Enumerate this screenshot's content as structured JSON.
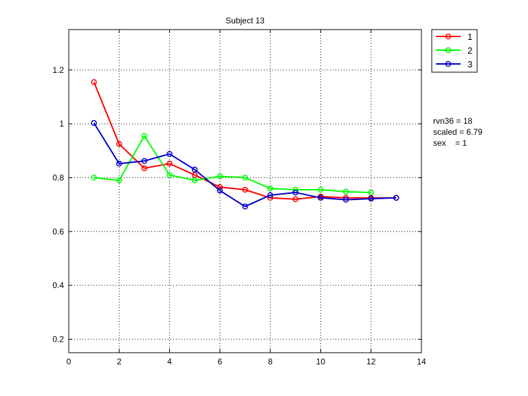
{
  "chart_data": {
    "type": "line",
    "title": "Subject 13",
    "xlabel": "",
    "ylabel": "",
    "xlim": [
      0,
      14
    ],
    "ylim": [
      0.15,
      1.35
    ],
    "xticks": [
      0,
      2,
      4,
      6,
      8,
      10,
      12,
      14
    ],
    "yticks": [
      0.2,
      0.4,
      0.6,
      0.8,
      1,
      1.2
    ],
    "xtick_labels": [
      "0",
      "2",
      "4",
      "6",
      "8",
      "10",
      "12",
      "14"
    ],
    "ytick_labels": [
      "0.2",
      "0.4",
      "0.6",
      "0.8",
      "1",
      "1.2"
    ],
    "grid": true,
    "legend_position": "outside-top-right",
    "series": [
      {
        "name": "1",
        "color": "#ff0000",
        "marker": "circle",
        "x": [
          1,
          2,
          3,
          4,
          5,
          6,
          7,
          8,
          9,
          10,
          11,
          12,
          13
        ],
        "y": [
          1.155,
          0.925,
          0.835,
          0.852,
          0.81,
          0.765,
          0.755,
          0.725,
          0.72,
          0.73,
          0.725,
          0.725,
          0.725
        ]
      },
      {
        "name": "2",
        "color": "#00ff00",
        "marker": "circle",
        "x": [
          1,
          2,
          3,
          4,
          5,
          6,
          7,
          8,
          9,
          10,
          11,
          12
        ],
        "y": [
          0.8,
          0.79,
          0.955,
          0.81,
          0.79,
          0.805,
          0.8,
          0.76,
          0.755,
          0.755,
          0.748,
          0.745
        ]
      },
      {
        "name": "3",
        "color": "#0000cc",
        "marker": "circle",
        "x": [
          1,
          2,
          3,
          4,
          5,
          6,
          7,
          8,
          9,
          10,
          11,
          12,
          13
        ],
        "y": [
          1.003,
          0.852,
          0.862,
          0.888,
          0.83,
          0.752,
          0.693,
          0.735,
          0.745,
          0.725,
          0.718,
          0.722,
          0.725
        ]
      }
    ],
    "annotations": [
      "rvn36 = 18",
      "scaled = 6.79",
      "sex    = 1"
    ]
  }
}
